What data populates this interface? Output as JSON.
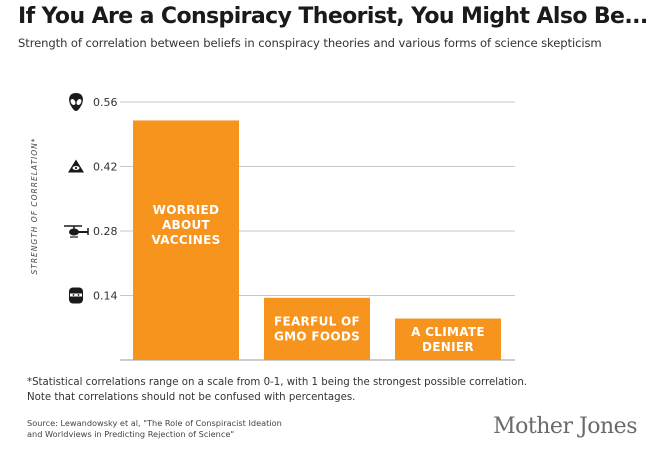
{
  "header": {
    "title": "If You Are a Conspiracy Theorist, You Might Also Be...",
    "subtitle": "Strength of correlation between beliefs in conspiracy theories and various forms of science skepticism"
  },
  "chart_data": {
    "type": "bar",
    "categories": [
      "WORRIED ABOUT VACCINES",
      "FEARFUL OF GMO FOODS",
      "A CLIMATE DENIER"
    ],
    "bar_label_lines": [
      [
        "WORRIED",
        "ABOUT",
        "VACCINES"
      ],
      [
        "FEARFUL OF",
        "GMO FOODS"
      ],
      [
        "A CLIMATE",
        "DENIER"
      ]
    ],
    "values": [
      0.52,
      0.135,
      0.09
    ],
    "ylabel": "STRENGTH OF CORRELATION*",
    "yticks": [
      0.14,
      0.28,
      0.42,
      0.56
    ],
    "ytick_labels": [
      "0.14",
      "0.28",
      "0.42",
      "0.56"
    ],
    "ytick_icons": [
      "ninja-icon",
      "helicopter-icon",
      "eye-pyramid-icon",
      "alien-icon"
    ],
    "ylim": [
      0,
      0.56
    ],
    "grid": true,
    "bar_color": "#F7941D"
  },
  "colors": {
    "bar": "#F7941D",
    "grid": "#c8c8c8",
    "axis": "#999999"
  },
  "footnote": {
    "line1": "*Statistical correlations range on a scale from 0-1, with 1 being the strongest possible correlation.",
    "line2": "Note that correlations should not be confused with percentages."
  },
  "source": {
    "line1": "Source: Lewandowsky et al, \"The Role of Conspiracist Ideation",
    "line2": "and Worldviews in Predicting Rejection of Science\""
  },
  "brand": "Mother Jones"
}
